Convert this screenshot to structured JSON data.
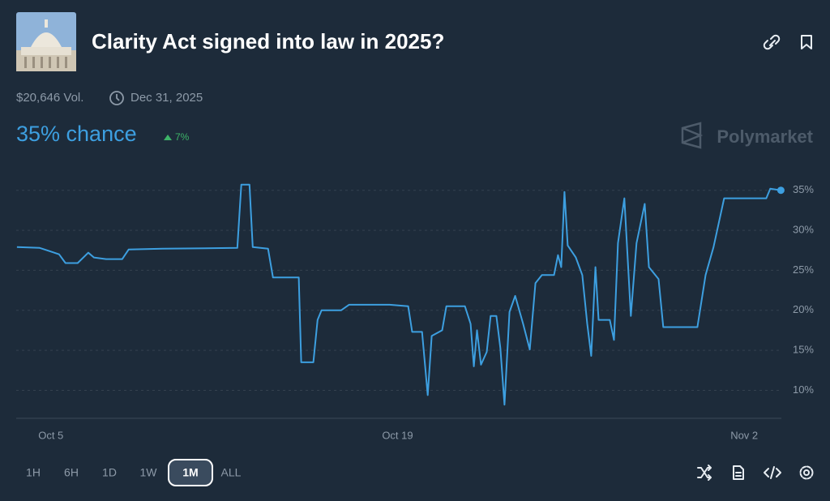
{
  "header": {
    "title": "Clarity Act signed into law in 2025?",
    "volume": "$20,646 Vol.",
    "end_date": "Dec 31, 2025"
  },
  "summary": {
    "chance": "35% chance",
    "change": "7%",
    "brand": "Polymarket"
  },
  "chart_data": {
    "type": "line",
    "color": "#3d9fe0",
    "grid": true,
    "x": [
      3.63,
      4.55,
      4.94,
      5.33,
      5.59,
      6.08,
      6.51,
      6.74,
      7.23,
      7.88,
      8.14,
      9.51,
      12.53,
      12.69,
      13.02,
      13.15,
      13.77,
      13.97,
      15.01,
      15.11,
      15.6,
      15.77,
      15.93,
      16.72,
      17.04,
      18.68,
      19.43,
      19.59,
      19.99,
      20.22,
      20.38,
      20.8,
      20.97,
      21.72,
      21.95,
      22.08,
      22.21,
      22.37,
      22.6,
      22.76,
      22.99,
      23.15,
      23.32,
      23.52,
      23.75,
      24.07,
      24.34,
      24.57,
      24.83,
      25.32,
      25.48,
      25.61,
      25.74,
      25.87,
      26.2,
      26.46,
      26.66,
      26.82,
      26.99,
      27.12,
      27.57,
      27.74,
      27.9,
      28.16,
      28.42,
      28.65,
      28.98,
      29.15,
      29.54,
      29.73,
      31.11,
      31.44,
      31.76,
      32.19,
      33.89,
      34.05,
      34.48
    ],
    "values": [
      27.9,
      27.8,
      27.4,
      27.0,
      25.9,
      25.9,
      27.2,
      26.6,
      26.4,
      26.4,
      27.6,
      27.7,
      27.8,
      35.7,
      35.7,
      27.9,
      27.7,
      24.1,
      24.1,
      13.5,
      13.5,
      18.8,
      20.0,
      20.0,
      20.7,
      20.7,
      20.5,
      17.3,
      17.3,
      9.4,
      16.8,
      17.5,
      20.5,
      20.5,
      18.3,
      13.0,
      17.5,
      13.2,
      14.8,
      19.3,
      19.3,
      15.3,
      8.2,
      19.8,
      21.8,
      18.3,
      15.1,
      23.4,
      24.4,
      24.4,
      26.9,
      25.4,
      34.8,
      28.1,
      26.6,
      24.4,
      18.3,
      14.3,
      25.4,
      18.8,
      18.8,
      16.3,
      28.4,
      34.0,
      19.3,
      28.4,
      33.3,
      25.4,
      23.9,
      17.9,
      17.9,
      24.4,
      27.9,
      34.0,
      34.0,
      35.2,
      35.0
    ],
    "xlim": [
      3.6,
      34.5
    ],
    "xticks": [
      {
        "value": 5,
        "label": "Oct 5"
      },
      {
        "value": 19,
        "label": "Oct 19"
      },
      {
        "value": 33,
        "label": "Nov 2"
      }
    ],
    "ylim": [
      6.5,
      37
    ],
    "yticks": [
      {
        "value": 10,
        "label": "10%"
      },
      {
        "value": 15,
        "label": "15%"
      },
      {
        "value": 20,
        "label": "20%"
      },
      {
        "value": 25,
        "label": "25%"
      },
      {
        "value": 30,
        "label": "30%"
      },
      {
        "value": 35,
        "label": "35%"
      }
    ]
  },
  "ranges": {
    "options": [
      "1H",
      "6H",
      "1D",
      "1W",
      "1M",
      "ALL"
    ],
    "active": "1M"
  }
}
